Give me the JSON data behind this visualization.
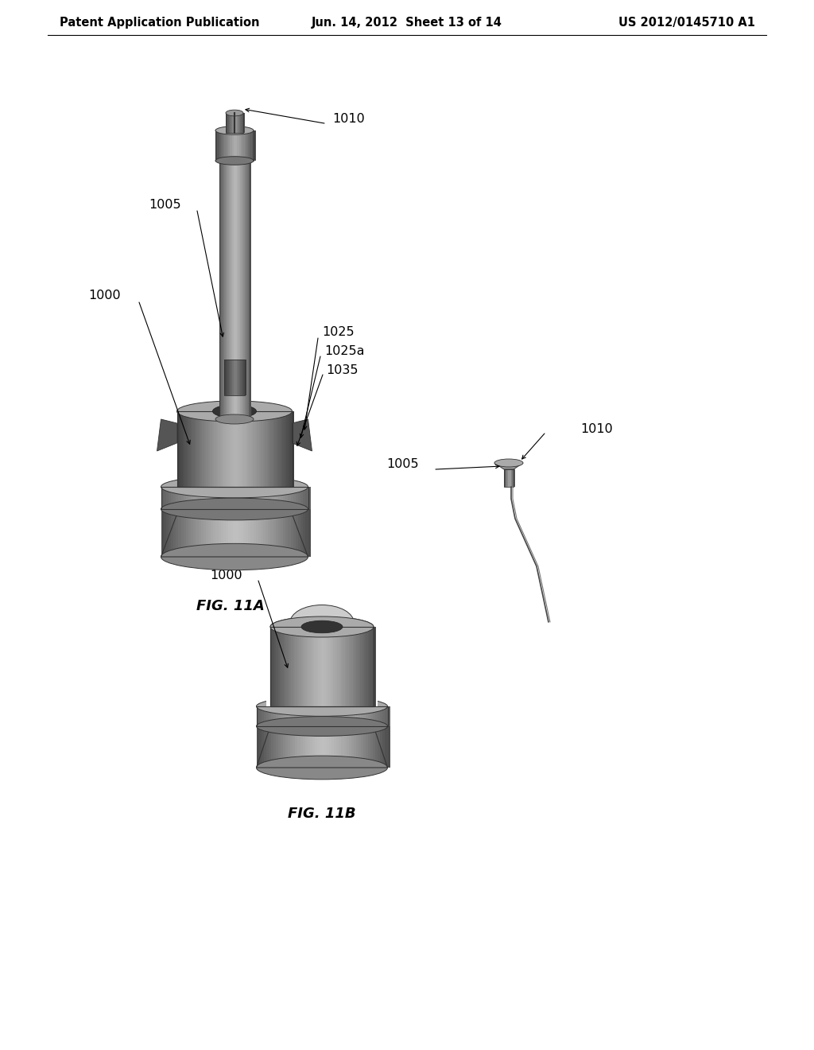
{
  "header_left": "Patent Application Publication",
  "header_mid": "Jun. 14, 2012  Sheet 13 of 14",
  "header_right": "US 2012/0145710 A1",
  "fig_11a_label": "FIG. 11A",
  "fig_11b_label": "FIG. 11B",
  "label_1000_a": "1000",
  "label_1005_a": "1005",
  "label_1010_a": "1010",
  "label_1025": "1025",
  "label_1025a": "1025a",
  "label_1035": "1035",
  "label_1005_b": "1005",
  "label_1010_b": "1010",
  "label_1000_b": "1000",
  "bg_color": "#ffffff",
  "text_color": "#000000",
  "header_fontsize": 10.5,
  "label_fontsize": 11.5,
  "figcaption_fontsize": 13
}
